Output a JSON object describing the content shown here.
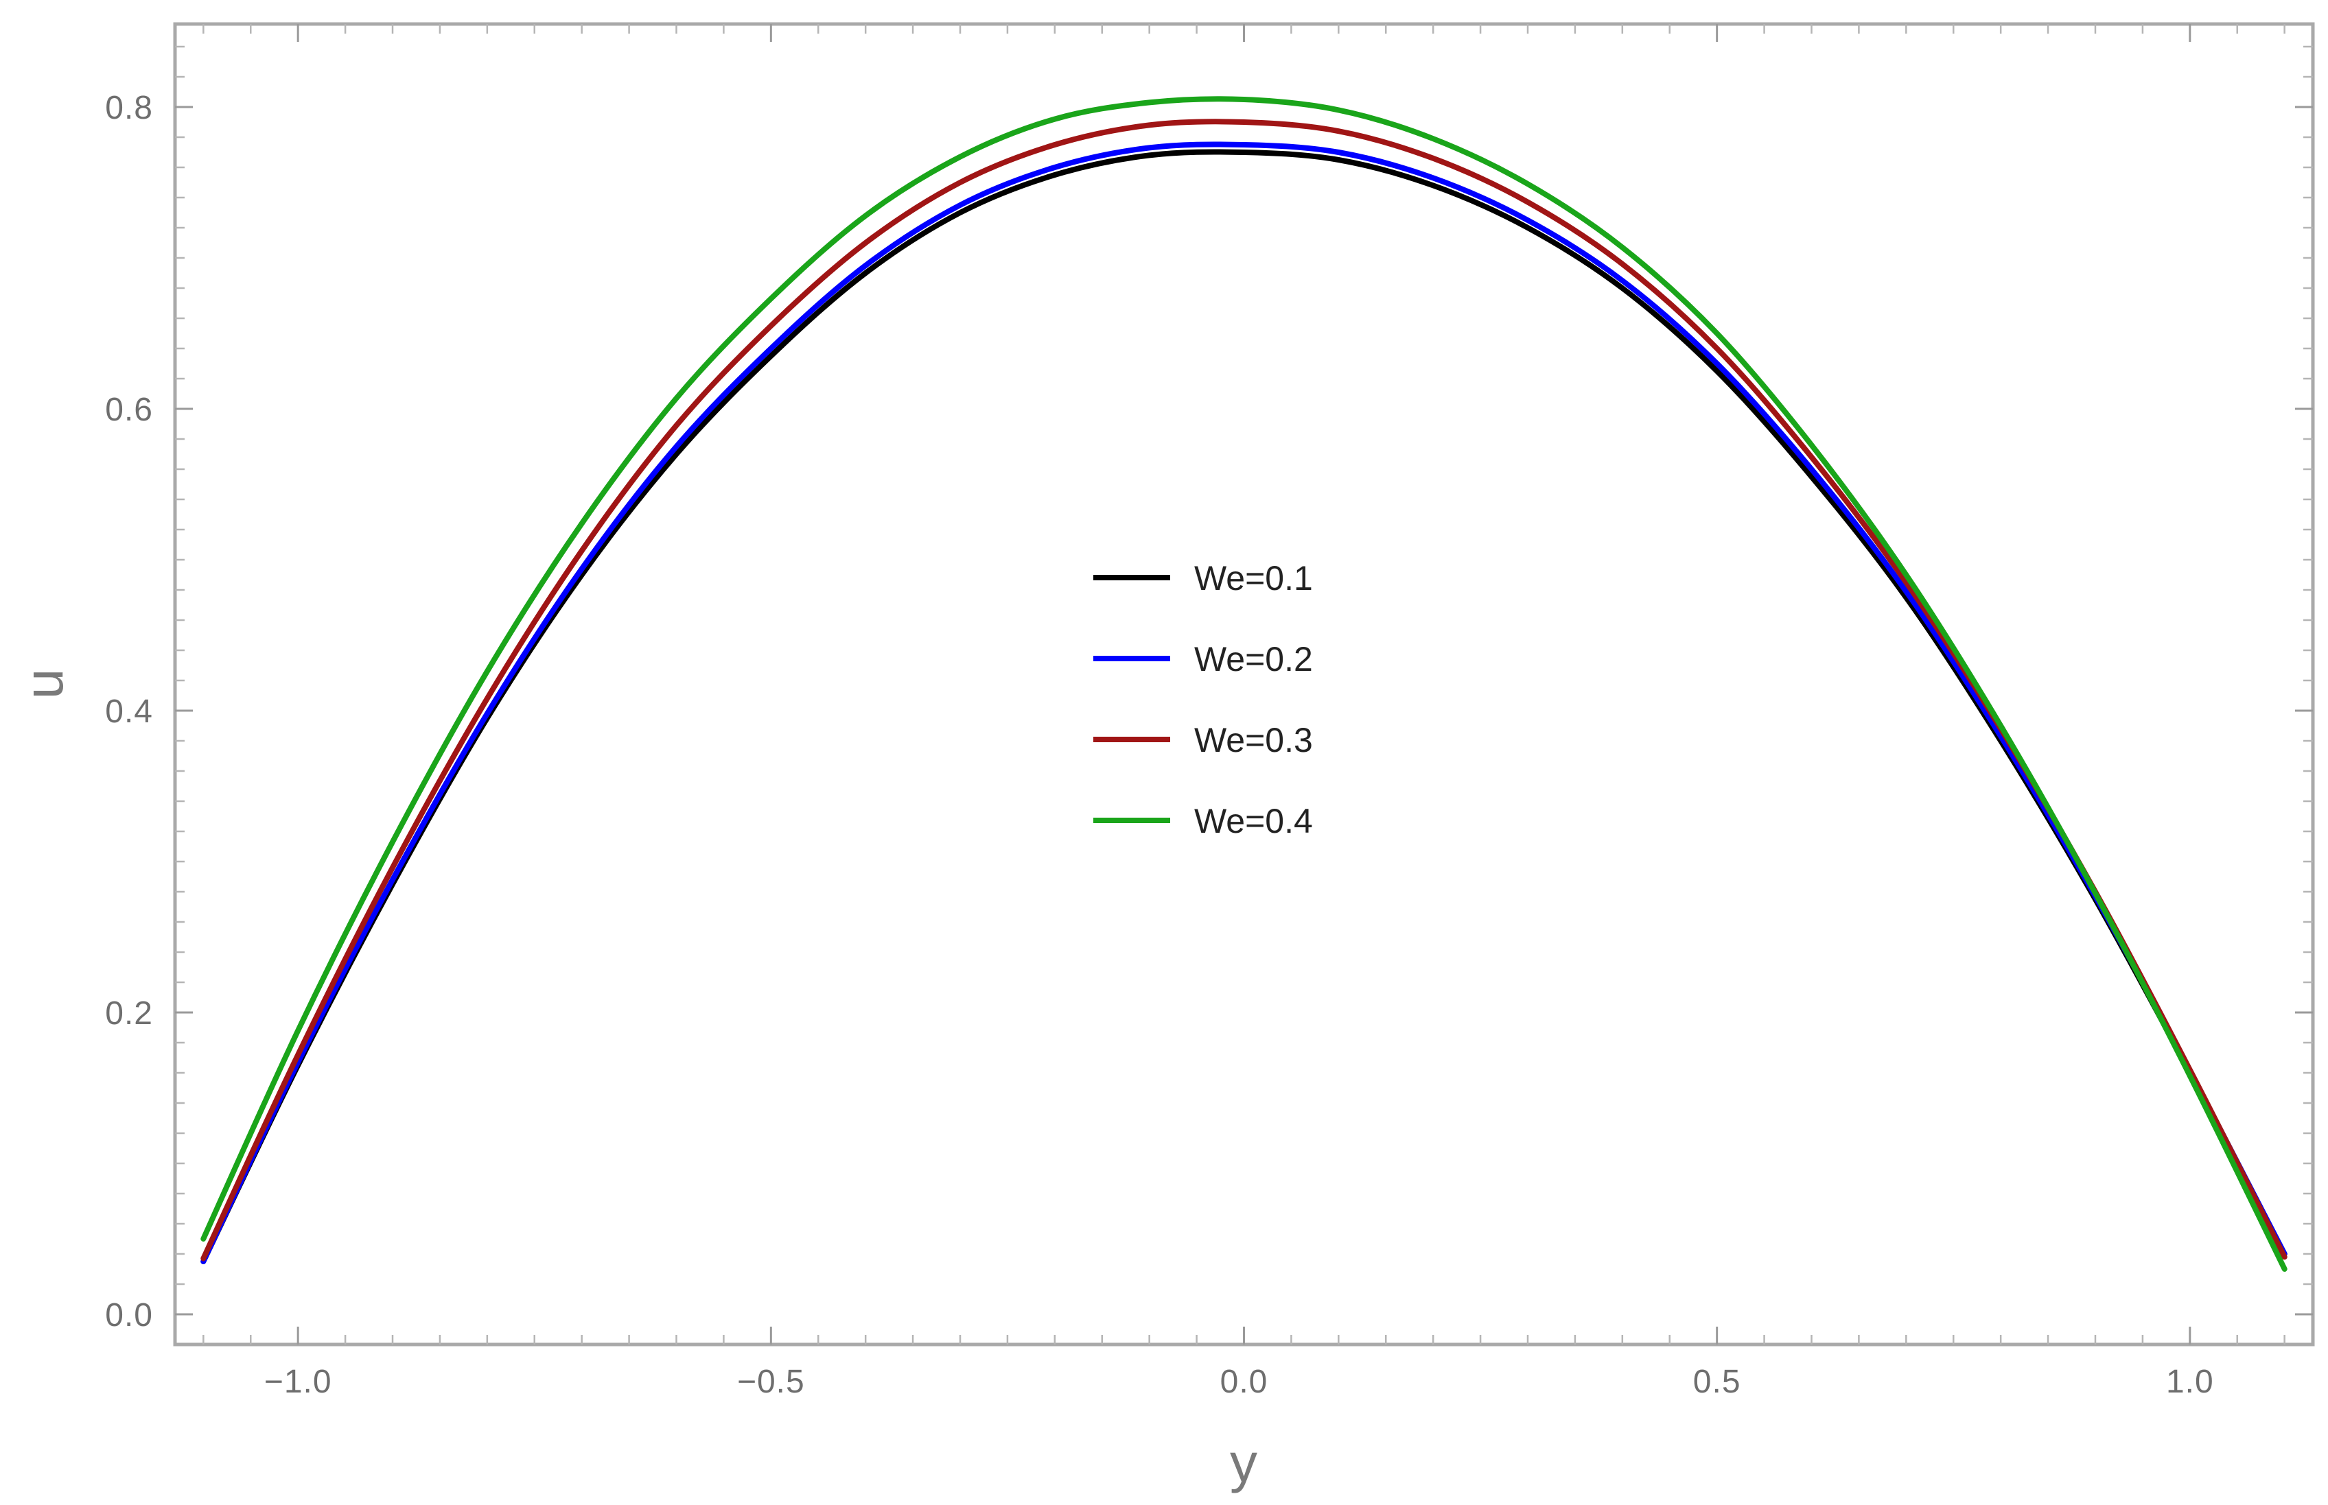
{
  "chart_data": {
    "type": "line",
    "title": "",
    "xlabel": "y",
    "ylabel": "u",
    "xlim": [
      -1.13,
      1.13
    ],
    "ylim": [
      -0.02,
      0.855
    ],
    "x_ticks": [
      -1.0,
      -0.5,
      0.0,
      0.5,
      1.0
    ],
    "x_tick_labels": [
      "−1.0",
      "−0.5",
      "0.0",
      "0.5",
      "1.0"
    ],
    "y_ticks": [
      0.0,
      0.2,
      0.4,
      0.6,
      0.8
    ],
    "y_tick_labels": [
      "0.0",
      "0.2",
      "0.4",
      "0.6",
      "0.8"
    ],
    "grid": false,
    "legend_position": "center",
    "series": [
      {
        "name": "We=0.1",
        "color": "#000000",
        "x": [
          -1.1,
          -1.0,
          -0.9,
          -0.8,
          -0.7,
          -0.6,
          -0.5,
          -0.4,
          -0.3,
          -0.2,
          -0.1,
          0.0,
          0.1,
          0.2,
          0.3,
          0.4,
          0.5,
          0.6,
          0.7,
          0.8,
          0.9,
          1.0,
          1.1
        ],
        "y": [
          0.035,
          0.165,
          0.285,
          0.395,
          0.49,
          0.57,
          0.635,
          0.69,
          0.73,
          0.755,
          0.768,
          0.77,
          0.765,
          0.748,
          0.72,
          0.68,
          0.625,
          0.555,
          0.475,
          0.38,
          0.275,
          0.16,
          0.04
        ]
      },
      {
        "name": "We=0.2",
        "color": "#0000ff",
        "x": [
          -1.1,
          -1.0,
          -0.9,
          -0.8,
          -0.7,
          -0.6,
          -0.5,
          -0.4,
          -0.3,
          -0.2,
          -0.1,
          0.0,
          0.1,
          0.2,
          0.3,
          0.4,
          0.5,
          0.6,
          0.7,
          0.8,
          0.9,
          1.0,
          1.1
        ],
        "y": [
          0.035,
          0.167,
          0.288,
          0.398,
          0.494,
          0.575,
          0.64,
          0.695,
          0.735,
          0.76,
          0.773,
          0.775,
          0.77,
          0.753,
          0.725,
          0.685,
          0.63,
          0.56,
          0.479,
          0.383,
          0.277,
          0.161,
          0.04
        ]
      },
      {
        "name": "We=0.3",
        "color": "#a01515",
        "x": [
          -1.1,
          -1.0,
          -0.9,
          -0.8,
          -0.7,
          -0.6,
          -0.5,
          -0.4,
          -0.3,
          -0.2,
          -0.1,
          0.0,
          0.1,
          0.2,
          0.3,
          0.4,
          0.5,
          0.6,
          0.7,
          0.8,
          0.9,
          1.0,
          1.1
        ],
        "y": [
          0.037,
          0.172,
          0.296,
          0.408,
          0.506,
          0.589,
          0.655,
          0.71,
          0.75,
          0.775,
          0.788,
          0.79,
          0.784,
          0.766,
          0.737,
          0.696,
          0.64,
          0.568,
          0.485,
          0.388,
          0.28,
          0.162,
          0.038
        ]
      },
      {
        "name": "We=0.4",
        "color": "#1aa51a",
        "x": [
          -1.1,
          -1.0,
          -0.9,
          -0.8,
          -0.7,
          -0.6,
          -0.5,
          -0.4,
          -0.3,
          -0.2,
          -0.1,
          0.0,
          0.1,
          0.2,
          0.3,
          0.4,
          0.5,
          0.6,
          0.7,
          0.8,
          0.9,
          1.0,
          1.1
        ],
        "y": [
          0.05,
          0.188,
          0.313,
          0.426,
          0.524,
          0.607,
          0.673,
          0.728,
          0.767,
          0.792,
          0.803,
          0.805,
          0.798,
          0.779,
          0.749,
          0.707,
          0.65,
          0.576,
          0.49,
          0.39,
          0.279,
          0.158,
          0.03
        ]
      }
    ]
  }
}
